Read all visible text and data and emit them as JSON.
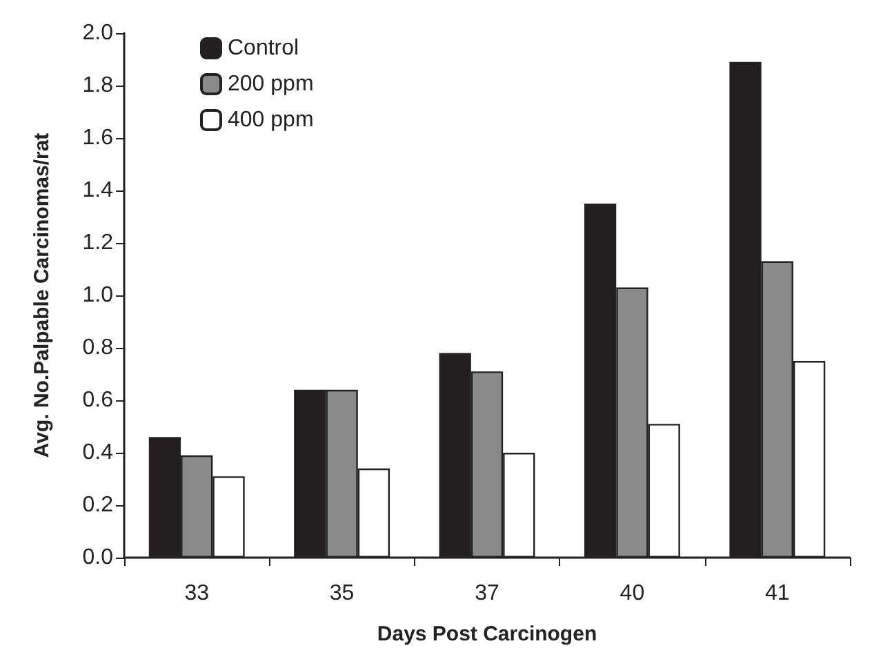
{
  "chart_data": {
    "type": "bar",
    "xlabel": "Days Post Carcinogen",
    "ylabel": "Avg. No.Palpable Carcinomas/rat",
    "categories": [
      "33",
      "35",
      "37",
      "40",
      "41"
    ],
    "series": [
      {
        "name": "Control",
        "color": "#231f20",
        "values": [
          0.46,
          0.64,
          0.78,
          1.35,
          1.89
        ]
      },
      {
        "name": "200 ppm",
        "color": "#8a8a8a",
        "values": [
          0.39,
          0.64,
          0.71,
          1.03,
          1.13
        ]
      },
      {
        "name": "400 ppm",
        "color": "#ffffff",
        "values": [
          0.31,
          0.34,
          0.4,
          0.51,
          0.75
        ]
      }
    ],
    "ylim": [
      0,
      2
    ],
    "yticks": [
      {
        "value": 0,
        "label": "0.0"
      },
      {
        "value": 0.2,
        "label": "0.2"
      },
      {
        "value": 0.4,
        "label": "0.4"
      },
      {
        "value": 0.6,
        "label": "0.6"
      },
      {
        "value": 0.8,
        "label": "0.8"
      },
      {
        "value": 1,
        "label": "1.0"
      },
      {
        "value": 1.2,
        "label": "1.2"
      },
      {
        "value": 1.4,
        "label": "1.4"
      },
      {
        "value": 1.6,
        "label": "1.6"
      },
      {
        "value": 1.8,
        "label": "1.8"
      },
      {
        "value": 2,
        "label": "2.0"
      }
    ],
    "grid": false,
    "legend": "top left"
  }
}
